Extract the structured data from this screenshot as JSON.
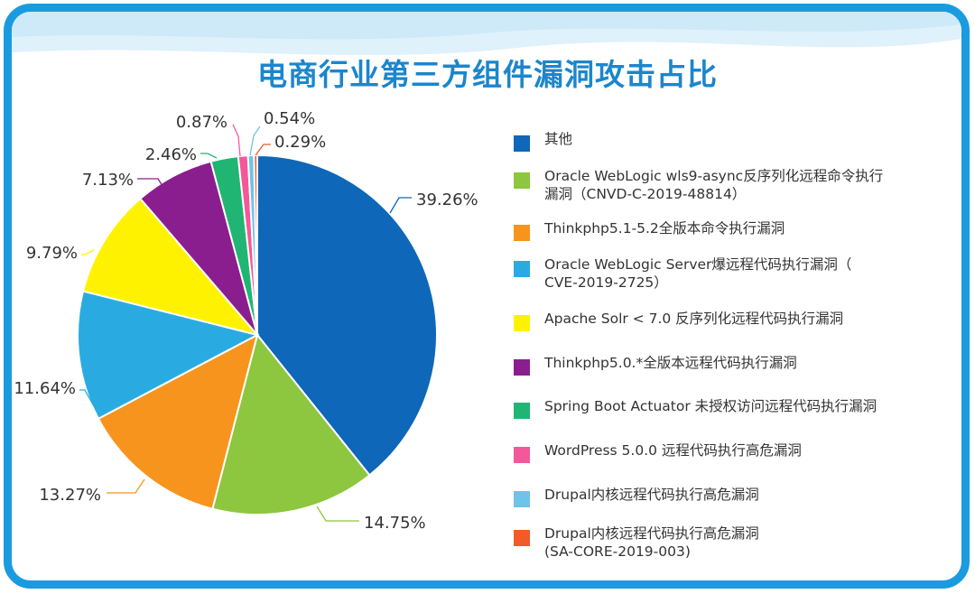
{
  "chart_data": {
    "type": "pie",
    "title": "电商行业第三方组件漏洞攻击占比",
    "legend_position": "right",
    "slices": [
      {
        "label": "其他",
        "value": 39.26,
        "display": "39.26%",
        "color": "#0e67b8"
      },
      {
        "label": "Oracle WebLogic wls9-async反序列化远程命令执行\n漏洞（CNVD-C-2019-48814）",
        "value": 14.75,
        "display": "14.75%",
        "color": "#8dc63f"
      },
      {
        "label": "Thinkphp5.1-5.2全版本命令执行漏洞",
        "value": 13.27,
        "display": "13.27%",
        "color": "#f7941d"
      },
      {
        "label": "Oracle WebLogic Server爆远程代码执行漏洞（\nCVE-2019-2725）",
        "value": 11.64,
        "display": "11.64%",
        "color": "#29abe2"
      },
      {
        "label": "Apache Solr < 7.0 反序列化远程代码执行漏洞",
        "value": 9.79,
        "display": "9.79%",
        "color": "#fff200"
      },
      {
        "label": "Thinkphp5.0.*全版本远程代码执行漏洞",
        "value": 7.13,
        "display": "7.13%",
        "color": "#8b1e8e"
      },
      {
        "label": "Spring Boot Actuator 未授权访问远程代码执行漏洞",
        "value": 2.46,
        "display": "2.46%",
        "color": "#21b573"
      },
      {
        "label": "WordPress 5.0.0 远程代码执行高危漏洞",
        "value": 0.87,
        "display": "0.87%",
        "color": "#f4589a"
      },
      {
        "label": "Drupal内核远程代码执行高危漏洞",
        "value": 0.54,
        "display": "0.54%",
        "color": "#6ec3e8"
      },
      {
        "label": "Drupal内核远程代码执行高危漏洞\n(SA-CORE-2019-003)",
        "value": 0.29,
        "display": "0.29%",
        "color": "#f15a29"
      }
    ]
  },
  "colors": {
    "frame": "#1a9be0",
    "title": "#1b86cc",
    "wave_light": "#dff1fb",
    "wave_mid": "#c3e6f7"
  }
}
